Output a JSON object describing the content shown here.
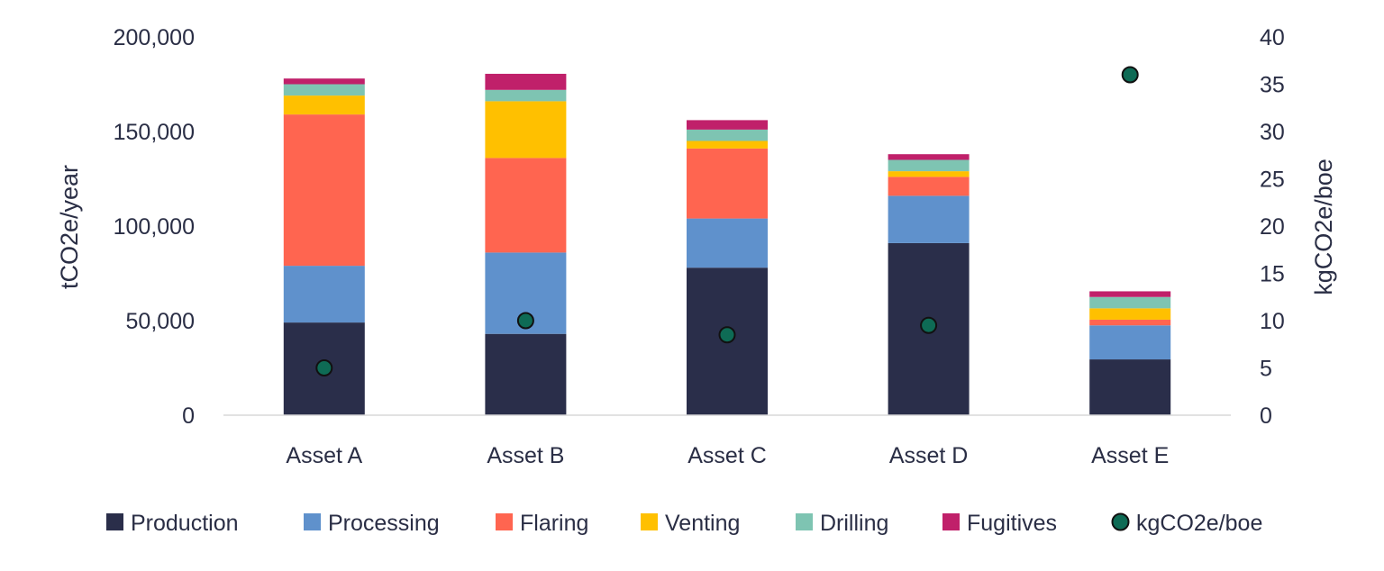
{
  "chart_data": {
    "type": "bar",
    "stacked": true,
    "categories": [
      "Asset A",
      "Asset B",
      "Asset C",
      "Asset D",
      "Asset E"
    ],
    "series": [
      {
        "name": "Production",
        "color": "#2a2e4a",
        "values": [
          49000,
          43000,
          78000,
          91000,
          29500
        ]
      },
      {
        "name": "Processing",
        "color": "#5f91cc",
        "values": [
          30000,
          43000,
          26000,
          25000,
          18000
        ]
      },
      {
        "name": "Flaring",
        "color": "#ff6550",
        "values": [
          80000,
          50000,
          37000,
          10000,
          3000
        ]
      },
      {
        "name": "Venting",
        "color": "#ffc000",
        "values": [
          10000,
          30000,
          4000,
          3000,
          6000
        ]
      },
      {
        "name": "Drilling",
        "color": "#7ec4b2",
        "values": [
          6000,
          6000,
          6000,
          6000,
          6000
        ]
      },
      {
        "name": "Fugitives",
        "color": "#c0206a",
        "values": [
          3000,
          8500,
          5000,
          3000,
          3000
        ]
      }
    ],
    "secondary_series": {
      "name": "kgCO2e/boe",
      "type": "scatter",
      "color": "#0e6b55",
      "values": [
        5,
        10,
        8.5,
        9.5,
        36
      ]
    },
    "ylabel": "tCO2e/year",
    "y2label": "kgCO2e/boe",
    "ylim": [
      0,
      200000
    ],
    "y2lim": [
      0,
      40
    ],
    "y_ticks": [
      "0",
      "50,000",
      "100,000",
      "150,000",
      "200,000"
    ],
    "y2_ticks": [
      "0",
      "5",
      "10",
      "15",
      "20",
      "25",
      "30",
      "35",
      "40"
    ],
    "legend": [
      "Production",
      "Processing",
      "Flaring",
      "Venting",
      "Drilling",
      "Fugitives",
      "kgCO2e/boe"
    ],
    "legend_position": "bottom",
    "grid": false
  }
}
